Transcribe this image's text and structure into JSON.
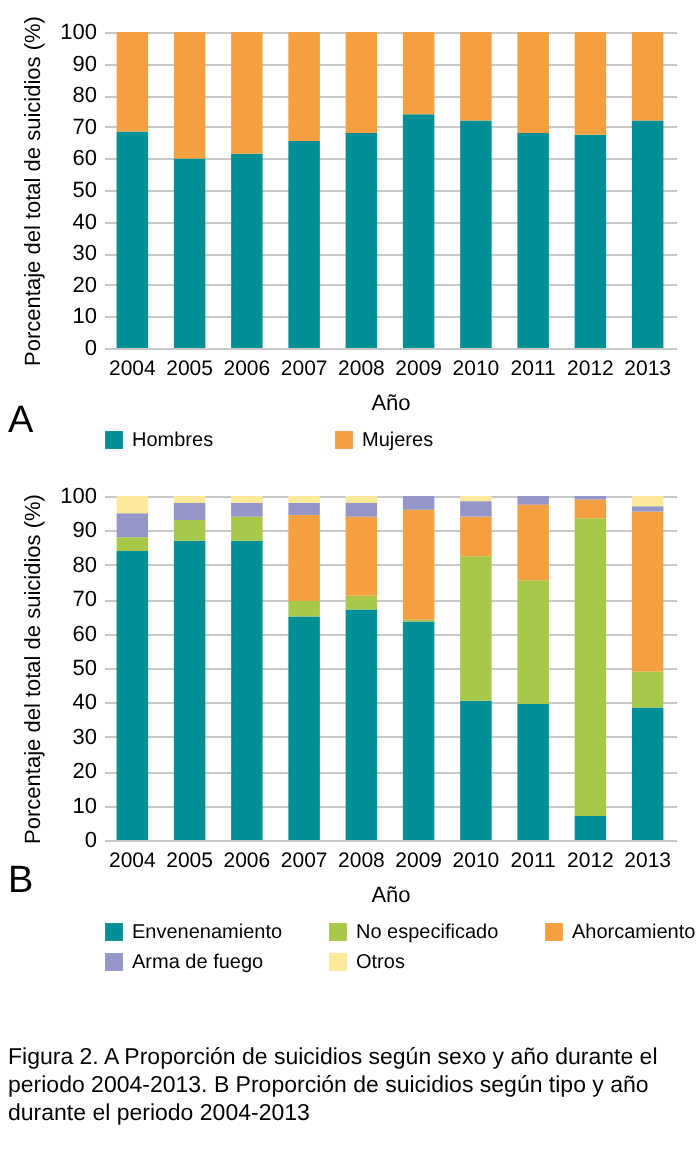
{
  "chart_data": [
    {
      "type": "bar",
      "stacked": true,
      "xlabel": "Año",
      "ylabel": "Porcentaje del total de suicidios (%)",
      "categories": [
        "2004",
        "2005",
        "2006",
        "2007",
        "2008",
        "2009",
        "2010",
        "2011",
        "2012",
        "2013"
      ],
      "series": [
        {
          "name": "Hombres",
          "color": "#008f94",
          "values": [
            68.5,
            60,
            61.5,
            65.5,
            68,
            74,
            72,
            68,
            67.5,
            72
          ]
        },
        {
          "name": "Mujeres",
          "color": "#f5a040",
          "values": [
            31.5,
            40,
            38.5,
            34.5,
            32,
            26,
            28,
            32,
            32.5,
            28
          ]
        }
      ],
      "ylim": [
        0,
        100
      ],
      "yticks": [
        0,
        10,
        20,
        30,
        40,
        50,
        60,
        70,
        80,
        90,
        100
      ],
      "grid": "y",
      "legend": "bottom",
      "annotations": [
        "A"
      ]
    },
    {
      "type": "bar",
      "stacked": true,
      "xlabel": "Año",
      "ylabel": "Porcentaje del total de suicidios (%)",
      "categories": [
        "2004",
        "2005",
        "2006",
        "2007",
        "2008",
        "2009",
        "2010",
        "2011",
        "2012",
        "2013"
      ],
      "series": [
        {
          "name": "Envenenamiento",
          "color": "#008f94",
          "values": [
            84,
            87,
            87,
            65,
            67,
            63.5,
            40.5,
            39.5,
            7,
            38.5
          ]
        },
        {
          "name": "No especificado",
          "color": "#a8c84a",
          "values": [
            4,
            6,
            7,
            4.5,
            4,
            0.5,
            42,
            36,
            86.5,
            10.5
          ]
        },
        {
          "name": "Ahorcamiento",
          "color": "#f5a040",
          "values": [
            0,
            0,
            0,
            25,
            23,
            32,
            11.5,
            22,
            5.5,
            46.5
          ]
        },
        {
          "name": "Arma de fuego",
          "color": "#9496c8",
          "values": [
            7,
            5,
            4,
            3.5,
            4,
            4,
            4.5,
            2.5,
            1,
            1.5
          ]
        },
        {
          "name": "Otros",
          "color": "#fde99a",
          "values": [
            5,
            2,
            2,
            2,
            2,
            0,
            1.5,
            0,
            0,
            3
          ]
        }
      ],
      "ylim": [
        0,
        100
      ],
      "yticks": [
        0,
        10,
        20,
        30,
        40,
        50,
        60,
        70,
        80,
        90,
        100
      ],
      "grid": "y",
      "legend": "bottom",
      "annotations": [
        "B",
        "Figura 2. A Proporción de suicidios según sexo y año durante el periodo 2004-2013. B Proporción de suicidios según tipo y año durante el periodo 2004-2013"
      ]
    }
  ]
}
